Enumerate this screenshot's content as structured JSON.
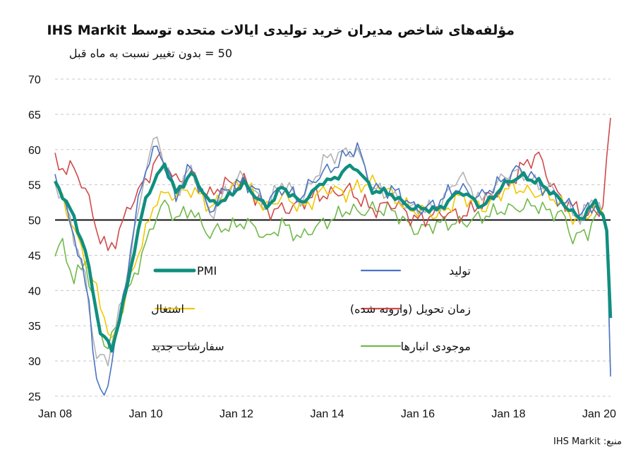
{
  "title": "مؤلفه‌های شاخص مدیران خرید تولیدی ایالات متحده توسط IHS Markit",
  "subtitle": "50 = بدون تغییر نسبت به ماه قبل",
  "source": "منبع: IHS Markit",
  "chart_data": {
    "type": "line",
    "x_start": "2008-01",
    "x_end": "2020-04",
    "xtick_labels": [
      "Jan 08",
      "Jan 10",
      "Jan 12",
      "Jan 14",
      "Jan 16",
      "Jan 18",
      "Jan 20"
    ],
    "ylim": [
      25,
      70
    ],
    "yticks": [
      25,
      30,
      35,
      40,
      45,
      50,
      55,
      60,
      65,
      70
    ],
    "reference_line": 50,
    "grid": "horizontal-dashed",
    "legend_placement": "inside-lower-center",
    "series": [
      {
        "name": "PMI",
        "color": "#0f8f7f",
        "width": 4.5,
        "knots": [
          [
            "2008-01",
            55.2
          ],
          [
            "2008-05",
            51.5
          ],
          [
            "2008-09",
            46
          ],
          [
            "2009-01",
            34
          ],
          [
            "2009-04",
            31.5
          ],
          [
            "2009-07",
            38
          ],
          [
            "2009-10",
            46
          ],
          [
            "2010-01",
            53
          ],
          [
            "2010-04",
            56
          ],
          [
            "2010-06",
            58
          ],
          [
            "2010-09",
            54
          ],
          [
            "2011-01",
            56.5
          ],
          [
            "2011-06",
            52.5
          ],
          [
            "2011-10",
            53
          ],
          [
            "2012-03",
            55
          ],
          [
            "2012-09",
            52
          ],
          [
            "2013-01",
            54.5
          ],
          [
            "2013-06",
            52.5
          ],
          [
            "2013-12",
            55.5
          ],
          [
            "2014-03",
            55.5
          ],
          [
            "2014-06",
            57.5
          ],
          [
            "2014-09",
            57.5
          ],
          [
            "2015-01",
            54
          ],
          [
            "2015-06",
            53.8
          ],
          [
            "2015-12",
            51.5
          ],
          [
            "2016-06",
            51.5
          ],
          [
            "2016-12",
            54
          ],
          [
            "2017-06",
            52
          ],
          [
            "2017-12",
            55
          ],
          [
            "2018-05",
            56.3
          ],
          [
            "2018-09",
            55.5
          ],
          [
            "2019-03",
            52.5
          ],
          [
            "2019-08",
            50.3
          ],
          [
            "2019-12",
            52.4
          ],
          [
            "2020-02",
            50.7
          ],
          [
            "2020-03",
            48.5
          ],
          [
            "2020-04",
            36.1
          ]
        ]
      },
      {
        "name": "تولید",
        "color": "#4a74c4",
        "width": 1.6,
        "knots": [
          [
            "2008-01",
            57
          ],
          [
            "2008-06",
            48
          ],
          [
            "2008-10",
            38
          ],
          [
            "2008-12",
            27
          ],
          [
            "2009-02",
            25
          ],
          [
            "2009-05",
            33
          ],
          [
            "2009-09",
            45
          ],
          [
            "2009-12",
            56
          ],
          [
            "2010-04",
            61
          ],
          [
            "2010-06",
            58
          ],
          [
            "2010-09",
            53
          ],
          [
            "2011-01",
            58
          ],
          [
            "2011-06",
            51
          ],
          [
            "2011-10",
            54
          ],
          [
            "2012-03",
            56
          ],
          [
            "2012-09",
            52
          ],
          [
            "2013-01",
            55
          ],
          [
            "2013-06",
            53
          ],
          [
            "2013-12",
            57
          ],
          [
            "2014-06",
            59
          ],
          [
            "2014-09",
            60
          ],
          [
            "2015-01",
            55
          ],
          [
            "2015-06",
            54
          ],
          [
            "2015-12",
            52
          ],
          [
            "2016-06",
            52
          ],
          [
            "2016-12",
            55
          ],
          [
            "2017-06",
            53
          ],
          [
            "2017-12",
            56
          ],
          [
            "2018-03",
            57.5
          ],
          [
            "2018-09",
            55
          ],
          [
            "2019-03",
            53
          ],
          [
            "2019-08",
            50.5
          ],
          [
            "2019-12",
            52.5
          ],
          [
            "2020-02",
            51
          ],
          [
            "2020-03",
            49
          ],
          [
            "2020-04",
            27.8
          ]
        ]
      },
      {
        "name": "اشتغال",
        "color": "#f0c800",
        "width": 1.6,
        "knots": [
          [
            "2008-01",
            55
          ],
          [
            "2008-05",
            50
          ],
          [
            "2008-09",
            45
          ],
          [
            "2009-01",
            38
          ],
          [
            "2009-04",
            32
          ],
          [
            "2009-07",
            38
          ],
          [
            "2009-10",
            44
          ],
          [
            "2010-01",
            48
          ],
          [
            "2010-04",
            53
          ],
          [
            "2010-07",
            54
          ],
          [
            "2011-01",
            54
          ],
          [
            "2011-06",
            52
          ],
          [
            "2011-10",
            54
          ],
          [
            "2012-03",
            55
          ],
          [
            "2012-09",
            52
          ],
          [
            "2013-01",
            53
          ],
          [
            "2013-06",
            52
          ],
          [
            "2013-12",
            54
          ],
          [
            "2014-06",
            54
          ],
          [
            "2014-09",
            55
          ],
          [
            "2015-01",
            55
          ],
          [
            "2015-06",
            54
          ],
          [
            "2015-12",
            51
          ],
          [
            "2016-06",
            51
          ],
          [
            "2016-12",
            53
          ],
          [
            "2017-06",
            52
          ],
          [
            "2017-12",
            54
          ],
          [
            "2018-05",
            54.5
          ],
          [
            "2018-09",
            54
          ],
          [
            "2019-03",
            52
          ],
          [
            "2019-08",
            50
          ],
          [
            "2019-12",
            51.5
          ],
          [
            "2020-02",
            51
          ],
          [
            "2020-03",
            49
          ],
          [
            "2020-04",
            36.5
          ]
        ]
      },
      {
        "name": "زمان تحویل (وارونه شده)",
        "color": "#cf4a4a",
        "width": 1.6,
        "knots": [
          [
            "2008-01",
            58.5
          ],
          [
            "2008-06",
            57
          ],
          [
            "2008-09",
            54
          ],
          [
            "2008-12",
            49
          ],
          [
            "2009-03",
            46
          ],
          [
            "2009-06",
            48
          ],
          [
            "2009-09",
            52
          ],
          [
            "2009-12",
            55
          ],
          [
            "2010-04",
            59
          ],
          [
            "2010-06",
            58
          ],
          [
            "2010-09",
            55
          ],
          [
            "2011-01",
            57
          ],
          [
            "2011-06",
            53
          ],
          [
            "2011-10",
            55
          ],
          [
            "2012-03",
            56
          ],
          [
            "2012-06",
            53
          ],
          [
            "2012-09",
            51
          ],
          [
            "2013-01",
            52
          ],
          [
            "2013-06",
            52
          ],
          [
            "2013-12",
            54
          ],
          [
            "2014-06",
            54
          ],
          [
            "2014-09",
            53
          ],
          [
            "2015-01",
            52
          ],
          [
            "2015-06",
            52
          ],
          [
            "2015-12",
            50.5
          ],
          [
            "2016-06",
            50.5
          ],
          [
            "2016-12",
            51
          ],
          [
            "2017-06",
            52
          ],
          [
            "2017-12",
            55
          ],
          [
            "2018-04",
            57
          ],
          [
            "2018-09",
            59
          ],
          [
            "2019-03",
            53
          ],
          [
            "2019-08",
            50.5
          ],
          [
            "2019-12",
            51.5
          ],
          [
            "2020-02",
            52
          ],
          [
            "2020-03",
            59
          ],
          [
            "2020-04",
            64.5
          ]
        ]
      },
      {
        "name": "سفارشات جدید",
        "color": "#b3b3b3",
        "width": 1.6,
        "knots": [
          [
            "2008-01",
            55
          ],
          [
            "2008-05",
            50
          ],
          [
            "2008-09",
            42
          ],
          [
            "2008-12",
            30
          ],
          [
            "2009-03",
            30
          ],
          [
            "2009-06",
            37
          ],
          [
            "2009-10",
            48
          ],
          [
            "2010-01",
            57
          ],
          [
            "2010-04",
            62
          ],
          [
            "2010-06",
            58
          ],
          [
            "2010-09",
            54
          ],
          [
            "2011-01",
            57
          ],
          [
            "2011-06",
            51
          ],
          [
            "2011-10",
            54
          ],
          [
            "2012-03",
            56
          ],
          [
            "2012-09",
            52
          ],
          [
            "2013-01",
            55
          ],
          [
            "2013-06",
            53
          ],
          [
            "2013-12",
            58
          ],
          [
            "2014-06",
            60
          ],
          [
            "2014-09",
            60
          ],
          [
            "2015-01",
            54
          ],
          [
            "2015-06",
            54
          ],
          [
            "2015-12",
            51
          ],
          [
            "2016-06",
            52
          ],
          [
            "2016-12",
            56
          ],
          [
            "2017-06",
            53
          ],
          [
            "2017-12",
            56
          ],
          [
            "2018-05",
            57
          ],
          [
            "2018-09",
            55
          ],
          [
            "2019-03",
            53
          ],
          [
            "2019-08",
            50.5
          ],
          [
            "2019-12",
            53
          ],
          [
            "2020-02",
            50.5
          ],
          [
            "2020-03",
            48
          ],
          [
            "2020-04",
            28.5
          ]
        ]
      },
      {
        "name": "موجودی انبارها",
        "color": "#72b84b",
        "width": 1.6,
        "knots": [
          [
            "2008-01",
            45.5
          ],
          [
            "2008-03",
            47
          ],
          [
            "2008-06",
            41
          ],
          [
            "2008-09",
            44
          ],
          [
            "2008-12",
            36
          ],
          [
            "2009-03",
            32
          ],
          [
            "2009-06",
            36
          ],
          [
            "2009-10",
            42
          ],
          [
            "2010-01",
            47
          ],
          [
            "2010-04",
            51
          ],
          [
            "2010-06",
            52
          ],
          [
            "2010-09",
            50
          ],
          [
            "2011-01",
            52
          ],
          [
            "2011-06",
            47.5
          ],
          [
            "2011-10",
            49
          ],
          [
            "2012-03",
            50
          ],
          [
            "2012-09",
            47
          ],
          [
            "2013-01",
            50
          ],
          [
            "2013-06",
            47
          ],
          [
            "2013-12",
            50
          ],
          [
            "2014-06",
            51
          ],
          [
            "2014-09",
            51
          ],
          [
            "2015-01",
            52
          ],
          [
            "2015-06",
            51
          ],
          [
            "2015-12",
            49
          ],
          [
            "2016-06",
            49
          ],
          [
            "2016-12",
            50
          ],
          [
            "2017-06",
            50
          ],
          [
            "2017-12",
            52
          ],
          [
            "2018-05",
            51.5
          ],
          [
            "2018-09",
            52
          ],
          [
            "2019-03",
            51
          ],
          [
            "2019-06",
            47
          ],
          [
            "2019-10",
            48.5
          ],
          [
            "2019-12",
            51
          ],
          [
            "2020-02",
            50.5
          ],
          [
            "2020-03",
            49
          ],
          [
            "2020-04",
            37
          ]
        ]
      }
    ]
  }
}
